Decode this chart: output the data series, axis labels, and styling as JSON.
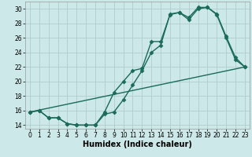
{
  "xlabel": "Humidex (Indice chaleur)",
  "xlim": [
    -0.5,
    23.5
  ],
  "ylim": [
    13.5,
    31.0
  ],
  "xticks": [
    0,
    1,
    2,
    3,
    4,
    5,
    6,
    7,
    8,
    9,
    10,
    11,
    12,
    13,
    14,
    15,
    16,
    17,
    18,
    19,
    20,
    21,
    22,
    23
  ],
  "yticks": [
    14,
    16,
    18,
    20,
    22,
    24,
    26,
    28,
    30
  ],
  "bg_color": "#cce8e8",
  "grid_color": "#b0cccc",
  "line_color": "#1a6b5a",
  "line1_x": [
    0,
    1,
    2,
    3,
    4,
    5,
    6,
    7,
    8,
    9,
    10,
    11,
    12,
    13,
    14,
    15,
    16,
    17,
    18,
    19,
    20,
    21,
    22,
    23
  ],
  "line1_y": [
    15.8,
    16.0,
    15.0,
    15.0,
    14.2,
    14.0,
    14.0,
    14.0,
    15.8,
    18.5,
    20.0,
    21.5,
    21.8,
    25.5,
    25.5,
    29.2,
    29.5,
    28.8,
    30.2,
    30.2,
    29.3,
    26.2,
    23.3,
    22.0
  ],
  "line2_x": [
    0,
    1,
    2,
    3,
    4,
    5,
    6,
    7,
    8,
    9,
    10,
    11,
    12,
    13,
    14,
    15,
    16,
    17,
    18,
    19,
    20,
    21,
    22,
    23
  ],
  "line2_y": [
    15.8,
    16.0,
    15.0,
    15.0,
    14.2,
    14.0,
    14.0,
    14.0,
    15.5,
    15.8,
    17.5,
    19.5,
    21.5,
    24.0,
    25.0,
    29.3,
    29.5,
    28.5,
    30.0,
    30.2,
    29.2,
    26.0,
    23.0,
    22.0
  ],
  "line3_x": [
    0,
    23
  ],
  "line3_y": [
    15.8,
    22.0
  ],
  "marker_size": 2.5,
  "linewidth": 1.0,
  "xlabel_fontsize": 7,
  "tick_fontsize": 5.5
}
